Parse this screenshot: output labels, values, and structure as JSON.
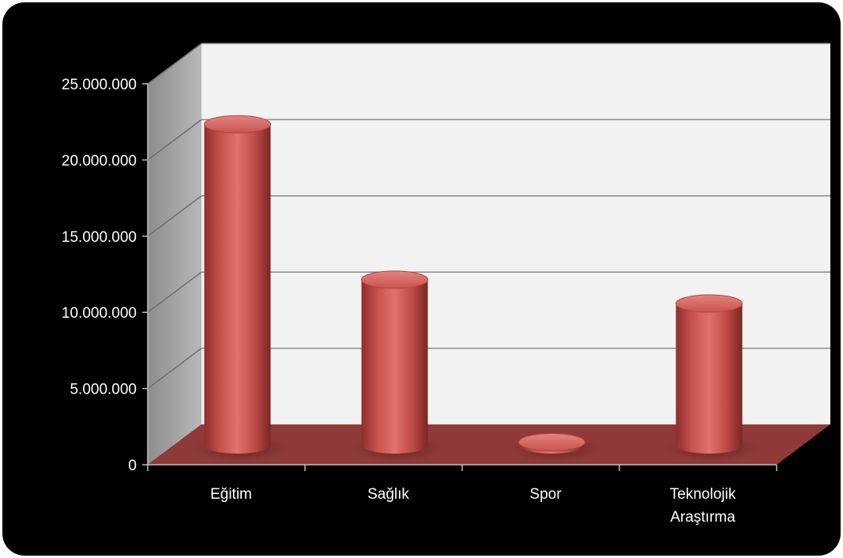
{
  "chart_data": {
    "type": "bar",
    "style": "3d-cylinder",
    "categories": [
      [
        "Eğitim"
      ],
      [
        "Sağlık"
      ],
      [
        "Spor"
      ],
      [
        "Teknolojik",
        "Araştırma"
      ]
    ],
    "values": [
      22900000,
      11800000,
      200000,
      10100000
    ],
    "ylim": [
      0,
      25000000
    ],
    "yticks": [
      "0",
      "5.000.000",
      "10.000.000",
      "15.000.000",
      "20.000.000",
      "25.000.000"
    ],
    "grid": true,
    "colors": {
      "background": "#000000",
      "back_wall": "#f2f2f2",
      "side_wall": "#a0a0a0",
      "floor": "#8f3a38",
      "bar": "#c0504d"
    }
  }
}
